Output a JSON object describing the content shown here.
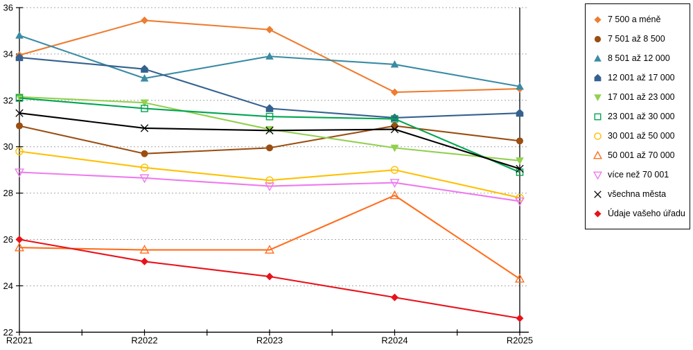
{
  "chart_data": {
    "type": "line",
    "title": "",
    "xlabel": "",
    "ylabel": "",
    "categories": [
      "R2021",
      "R2022",
      "R2023",
      "R2024",
      "R2025"
    ],
    "y_axis": {
      "min": 22,
      "max": 36,
      "step": 2,
      "ticks": [
        "22",
        "24",
        "26",
        "28",
        "30",
        "32",
        "34",
        "36"
      ]
    },
    "grid": true,
    "grid_style": "dashed",
    "legend_position": "right",
    "series": [
      {
        "name": "7 500 a méně",
        "color": "#ED7D31",
        "marker": "diamond",
        "fill": true,
        "values": [
          33.95,
          35.45,
          35.05,
          32.35,
          32.5
        ]
      },
      {
        "name": "7 501 až 8 500",
        "color": "#9A4E12",
        "marker": "circle",
        "fill": true,
        "values": [
          30.9,
          29.7,
          29.95,
          30.9,
          30.25
        ]
      },
      {
        "name": "8 501 až 12 000",
        "color": "#3A8BA4",
        "marker": "triangle-up",
        "fill": true,
        "values": [
          34.8,
          32.95,
          33.9,
          33.55,
          32.6
        ]
      },
      {
        "name": "12 001 až 17 000",
        "color": "#35618F",
        "marker": "pentagon",
        "fill": true,
        "values": [
          33.85,
          33.35,
          31.65,
          31.25,
          31.45
        ]
      },
      {
        "name": "17 001 až 23 000",
        "color": "#92D050",
        "marker": "triangle-down",
        "fill": true,
        "values": [
          32.15,
          31.9,
          30.75,
          29.95,
          29.4
        ]
      },
      {
        "name": "23 001 až 30 000",
        "color": "#00A550",
        "marker": "square",
        "fill": false,
        "values": [
          32.1,
          31.65,
          31.3,
          31.2,
          28.9
        ]
      },
      {
        "name": "30 001 až 50 000",
        "color": "#FFC000",
        "marker": "circle",
        "fill": false,
        "values": [
          29.8,
          29.1,
          28.55,
          29.0,
          27.8
        ]
      },
      {
        "name": "50 001 až 70 000",
        "color": "#FF6E1E",
        "marker": "triangle-up",
        "fill": false,
        "values": [
          25.65,
          25.55,
          25.55,
          27.9,
          24.3
        ]
      },
      {
        "name": "více než 70 001",
        "color": "#EE7AEE",
        "marker": "triangle-down",
        "fill": false,
        "values": [
          28.9,
          28.65,
          28.3,
          28.45,
          27.65
        ]
      },
      {
        "name": "všechna města",
        "color": "#000000",
        "marker": "x",
        "fill": false,
        "values": [
          31.45,
          30.8,
          30.7,
          30.75,
          29.05
        ]
      },
      {
        "name": "Údaje vašeho úřadu",
        "color": "#E8121A",
        "marker": "diamond",
        "fill": true,
        "values": [
          26.0,
          25.05,
          24.4,
          23.5,
          22.6
        ]
      }
    ]
  },
  "colors": {
    "grid": "#A6A6A6",
    "axis": "#000000",
    "background": "#FFFFFF"
  }
}
